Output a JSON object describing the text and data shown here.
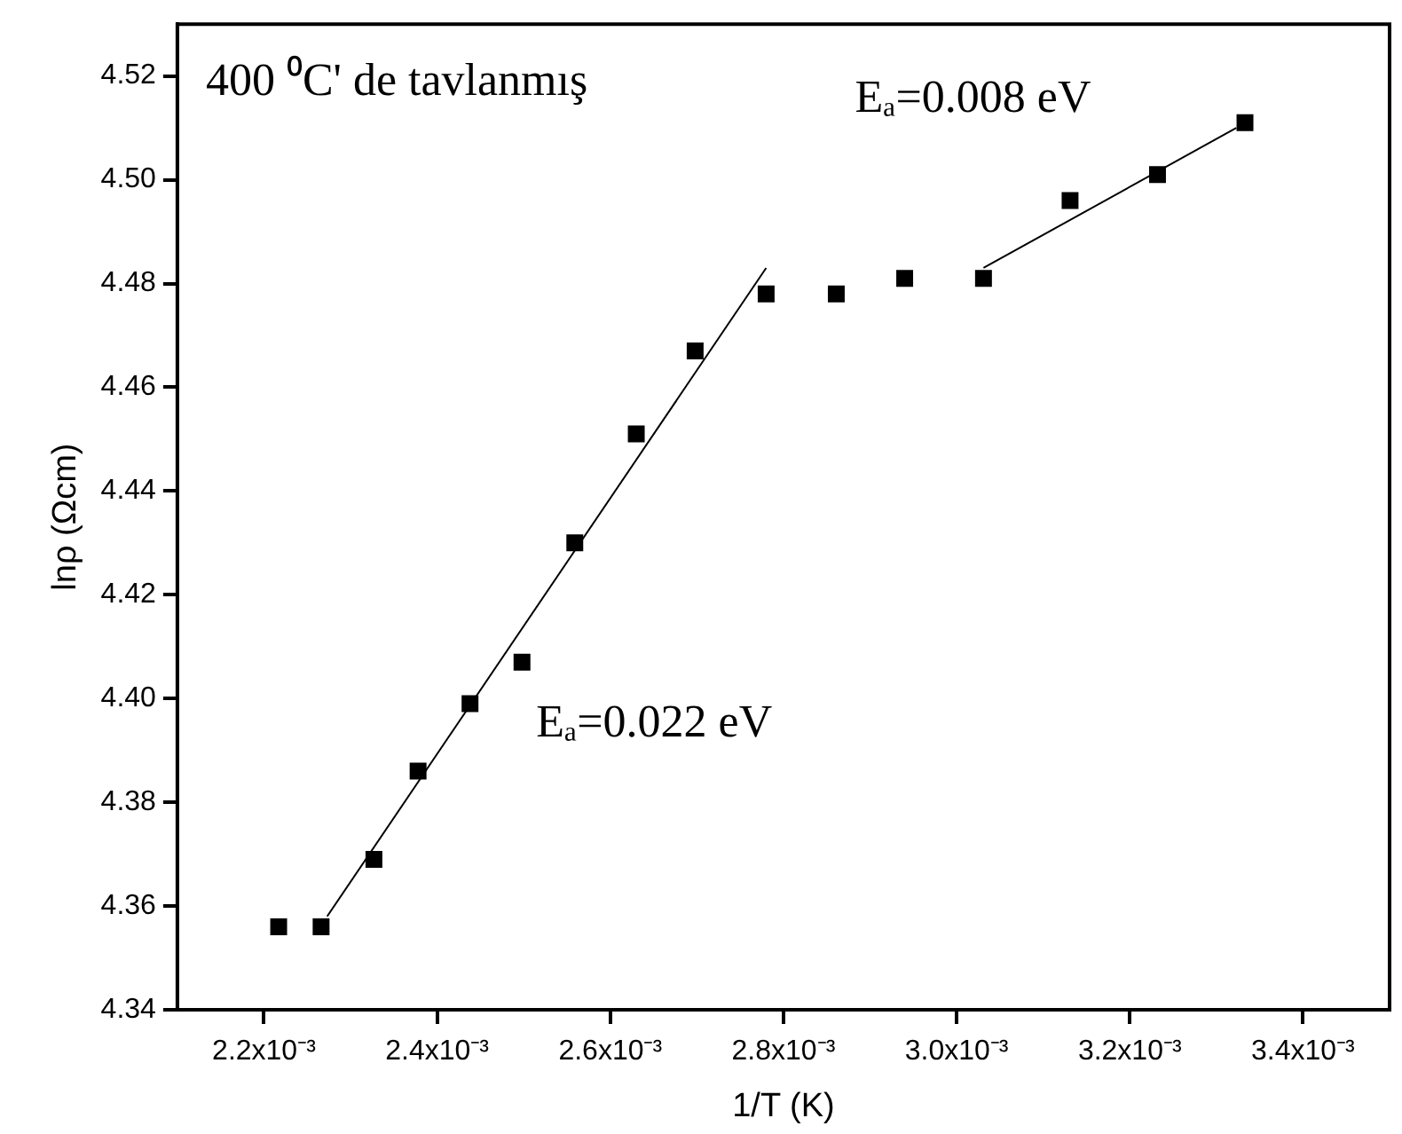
{
  "chart_data": {
    "type": "scatter",
    "title": "400 ⁰C' de tavlanmış",
    "xlabel": "1/T (K)",
    "ylabel": "lnρ (Ωcm)",
    "xlim": [
      0.0021,
      0.0035
    ],
    "ylim": [
      4.34,
      4.53
    ],
    "xticks": [
      {
        "value": 0.0022,
        "label": "2.2x10⁻³"
      },
      {
        "value": 0.0024,
        "label": "2.4x10⁻³"
      },
      {
        "value": 0.0026,
        "label": "2.6x10⁻³"
      },
      {
        "value": 0.0028,
        "label": "2.8x10⁻³"
      },
      {
        "value": 0.003,
        "label": "3.0x10⁻³"
      },
      {
        "value": 0.0032,
        "label": "3.2x10⁻³"
      },
      {
        "value": 0.0034,
        "label": "3.4x10⁻³"
      }
    ],
    "yticks": [
      {
        "value": 4.34,
        "label": "4.34"
      },
      {
        "value": 4.36,
        "label": "4.36"
      },
      {
        "value": 4.38,
        "label": "4.38"
      },
      {
        "value": 4.4,
        "label": "4.40"
      },
      {
        "value": 4.42,
        "label": "4.42"
      },
      {
        "value": 4.44,
        "label": "4.44"
      },
      {
        "value": 4.46,
        "label": "4.46"
      },
      {
        "value": 4.48,
        "label": "4.48"
      },
      {
        "value": 4.5,
        "label": "4.50"
      },
      {
        "value": 4.52,
        "label": "4.52"
      }
    ],
    "grid": false,
    "legend": false,
    "marker": "square",
    "series": [
      {
        "color": "#000000",
        "x": [
          0.002217,
          0.002266,
          0.002327,
          0.002378,
          0.002438,
          0.002498,
          0.002559,
          0.00263,
          0.002698,
          0.00278,
          0.002861,
          0.00294,
          0.003031,
          0.003131,
          0.003232,
          0.003333
        ],
        "values": [
          4.356,
          4.356,
          4.369,
          4.386,
          4.399,
          4.407,
          4.43,
          4.451,
          4.467,
          4.478,
          4.478,
          4.481,
          4.481,
          4.496,
          4.501,
          4.511
        ]
      },
      {
        "type": "line",
        "color": "#000000",
        "marker": "none",
        "line_style": "solid",
        "x": [
          0.002273,
          0.00278
        ],
        "values": [
          4.358,
          4.483
        ]
      },
      {
        "type": "line",
        "color": "#000000",
        "marker": "none",
        "line_style": "solid",
        "x": [
          0.003031,
          0.003323
        ],
        "values": [
          4.483,
          4.51
        ]
      }
    ],
    "annotations": [
      "Eₐ=0.022 eV",
      "Eₐ=0.008 eV"
    ]
  }
}
